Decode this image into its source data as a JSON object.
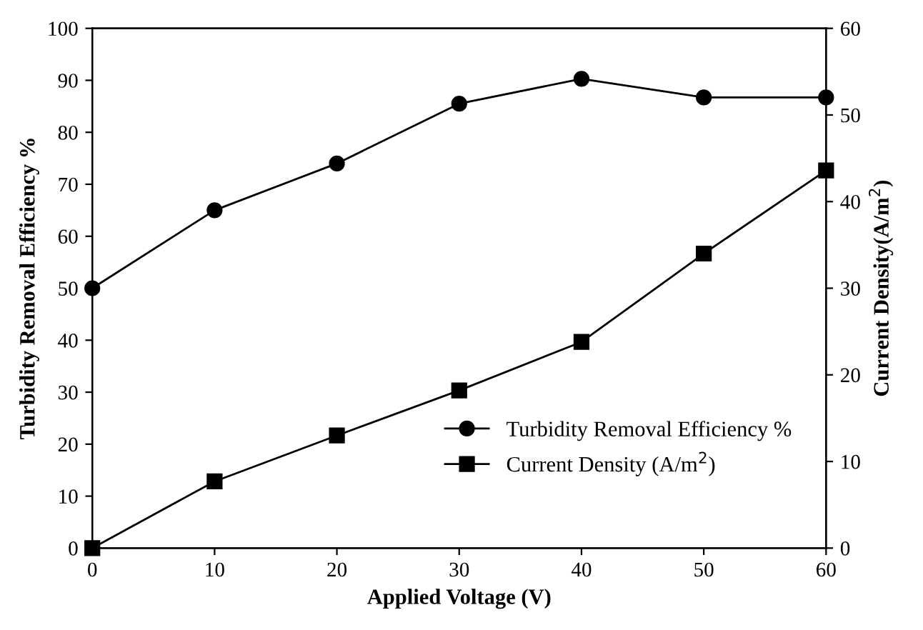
{
  "chart_data": {
    "type": "line",
    "xlabel": "Applied Voltage (V)",
    "ylabel": "Turbidity Removal Efficiency %",
    "y2label": "Current Density(A/m$^{2}$)",
    "x": [
      0,
      10,
      20,
      30,
      40,
      50,
      60
    ],
    "series": [
      {
        "name": "Turbidity Removal Efficiency %",
        "color": "#000000",
        "marker": "circle",
        "values": [
          50,
          65,
          74,
          85.5,
          90.3,
          86.7,
          86.7
        ]
      },
      {
        "name": "Current Density (A/m$^{2}$)",
        "color": "#000000",
        "marker": "square",
        "axis": "y2",
        "values": [
          0,
          7.7,
          13,
          18.2,
          23.8,
          34,
          43.6
        ]
      }
    ],
    "xlim": [
      0,
      60
    ],
    "xticks": [
      0,
      10,
      20,
      30,
      40,
      50,
      60
    ],
    "ylim": [
      0,
      100
    ],
    "yticks": [
      0,
      10,
      20,
      30,
      40,
      50,
      60,
      70,
      80,
      90,
      100
    ],
    "y2lim": [
      0,
      60
    ],
    "y2ticks": [
      0,
      10,
      20,
      30,
      40,
      50,
      60
    ],
    "legend": "bottom right",
    "grid": false,
    "line_style": "solid"
  }
}
